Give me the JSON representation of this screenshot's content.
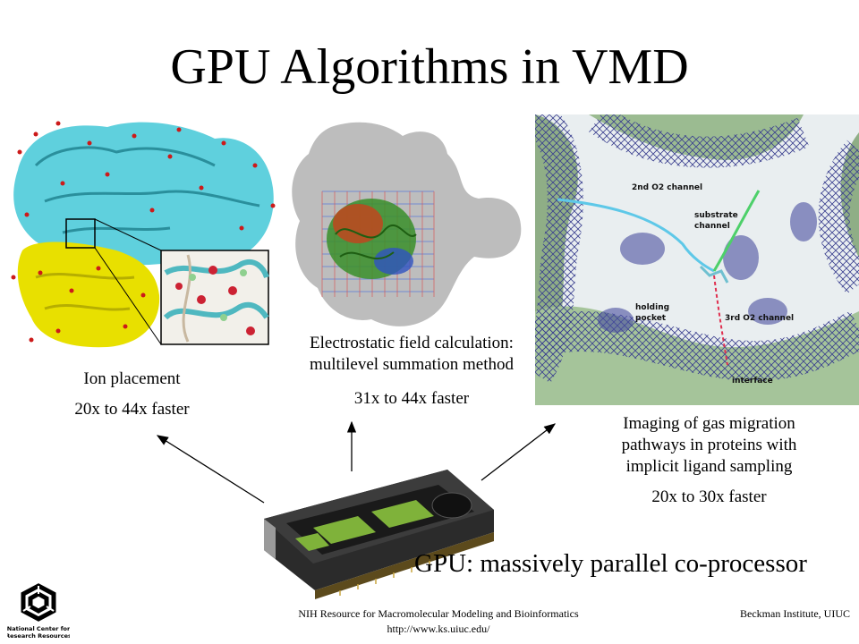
{
  "slide": {
    "title": "GPU Algorithms in VMD",
    "panels": [
      {
        "caption": "Ion placement",
        "speedup": "20x to 44x faster"
      },
      {
        "caption_line1": "Electrostatic field calculation:",
        "caption_line2": "multilevel summation method",
        "speedup": "31x to 44x faster"
      },
      {
        "caption_line1": "Imaging of gas migration",
        "caption_line2": "pathways in proteins with",
        "caption_line3": "implicit ligand sampling",
        "speedup": "20x to 30x faster",
        "labels": {
          "channel2": "2nd O2 channel",
          "substrate": "substrate",
          "channel": "channel",
          "holding": "holding",
          "pocket": "pocket",
          "channel3": "3rd O2 channel",
          "interface": "interface"
        }
      }
    ],
    "gpu_label": "GPU: massively parallel co-processor",
    "footer": {
      "left_line1": "NIH Resource for Macromolecular Modeling and Bioinformatics",
      "left_line2": "http://www.ks.uiuc.edu/",
      "right": "Beckman Institute, UIUC"
    },
    "logo": {
      "line1": "National Center for",
      "line2": "Research Resources"
    }
  }
}
